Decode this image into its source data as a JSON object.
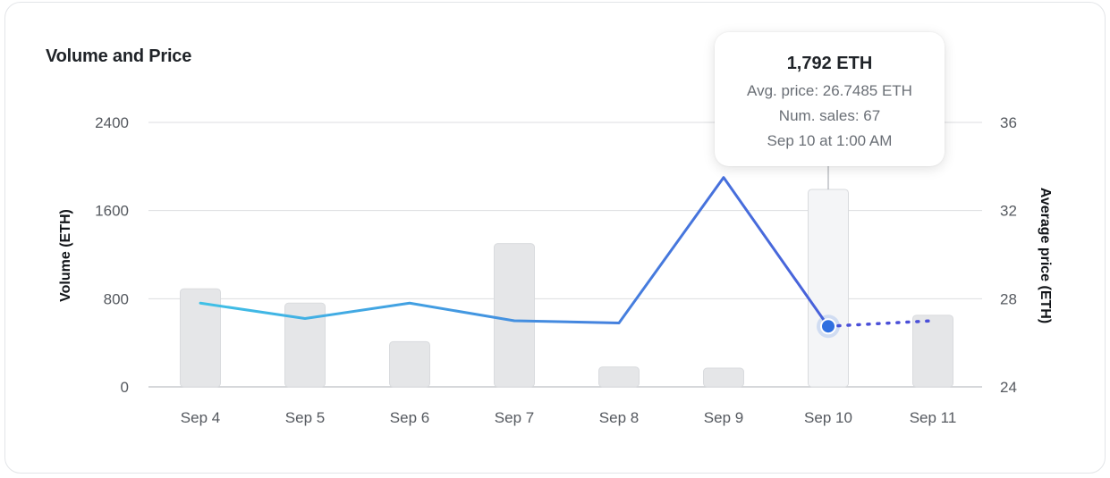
{
  "card": {
    "title": "Volume and Price"
  },
  "tooltip": {
    "value": "1,792 ETH",
    "avg_price": "Avg. price: 26.7485 ETH",
    "num_sales": "Num. sales: 67",
    "time": "Sep 10 at 1:00 AM"
  },
  "colors": {
    "bar": "#e5e6e8",
    "bar_highlight": "#f4f5f7",
    "bar_stroke": "#d9dbde",
    "line_start": "#3fc1e6",
    "line_end": "#4a4fd8",
    "grid": "#dcdde0",
    "marker": "#2f6fe0"
  },
  "chart_data": {
    "type": "bar",
    "title": "Volume and Price",
    "categories": [
      "Sep 4",
      "Sep 5",
      "Sep 6",
      "Sep 7",
      "Sep 8",
      "Sep 9",
      "Sep 10",
      "Sep 11"
    ],
    "series": [
      {
        "type": "bar",
        "axis": "left",
        "values": [
          890,
          760,
          410,
          1300,
          180,
          170,
          1792,
          650
        ]
      },
      {
        "type": "line",
        "axis": "right",
        "values": [
          27.8,
          27.1,
          27.8,
          27.0,
          26.9,
          33.5,
          26.7485,
          27.0
        ],
        "dotted_from_index": 6
      }
    ],
    "ylabel": "Volume (ETH)",
    "ylabel_right": "Average price (ETH)",
    "ylim": [
      0,
      2400
    ],
    "yticks": [
      0,
      800,
      1600,
      2400
    ],
    "ylim_right": [
      24,
      36
    ],
    "yticks_right": [
      24,
      28,
      32,
      36
    ],
    "highlight_index": 6,
    "grid": true
  }
}
